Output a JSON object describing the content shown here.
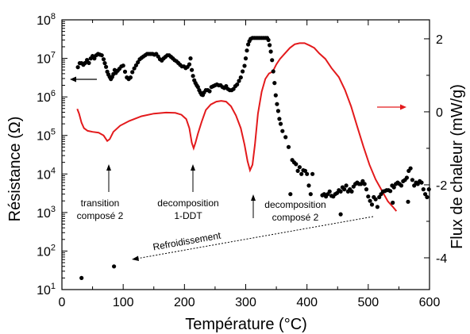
{
  "chart_data": {
    "type": "scatter",
    "xlabel": "Température (°C)",
    "ylabel_left": "Résistance (Ω)",
    "ylabel_right": "Flux de chaleur (mW/g)",
    "x_ticks": [
      "0",
      "100",
      "200",
      "300",
      "400",
      "500",
      "600"
    ],
    "xlim": [
      0,
      600
    ],
    "y_left_scale": "log",
    "y_left_range": [
      10,
      100000000
    ],
    "y_left_ticks": [
      {
        "base": "10",
        "exp": "1"
      },
      {
        "base": "10",
        "exp": "2"
      },
      {
        "base": "10",
        "exp": "3"
      },
      {
        "base": "10",
        "exp": "4"
      },
      {
        "base": "10",
        "exp": "5"
      },
      {
        "base": "10",
        "exp": "6"
      },
      {
        "base": "10",
        "exp": "7"
      },
      {
        "base": "10",
        "exp": "8"
      }
    ],
    "y_right_range": [
      -4.87,
      2.52
    ],
    "y_right_ticks": [
      "2",
      "0",
      "-2",
      "-4"
    ],
    "colors": {
      "resistance": "#000000",
      "heat_flow": "#e31a1c"
    },
    "annotations": [
      {
        "line1": "transition",
        "line2": "composé 2"
      },
      {
        "line1": "decomposition",
        "line2": "1-DDT"
      },
      {
        "line1": "decomposition",
        "line2": "composé 2"
      },
      {
        "line1": "Refroidissement",
        "line2": ""
      }
    ],
    "resistance_heating": [
      [
        26,
        5900000.0
      ],
      [
        29,
        7500000.0
      ],
      [
        32,
        7500000.0
      ],
      [
        35,
        6800000.0
      ],
      [
        38,
        7600000.0
      ],
      [
        41,
        9100000.0
      ],
      [
        44,
        7600000.0
      ],
      [
        47,
        10000000.0
      ],
      [
        50,
        11500000.0
      ],
      [
        53,
        10000000.0
      ],
      [
        56,
        12000000.0
      ],
      [
        59,
        13000000.0
      ],
      [
        62,
        12500000.0
      ],
      [
        65,
        12000000.0
      ],
      [
        68,
        9500000.0
      ],
      [
        70,
        7500000.0
      ],
      [
        72,
        6000000.0
      ],
      [
        74,
        4500000.0
      ],
      [
        76,
        3800000.0
      ],
      [
        78,
        3300000.0
      ],
      [
        80,
        2900000.0
      ],
      [
        82,
        3300000.0
      ],
      [
        84,
        3900000.0
      ],
      [
        86,
        5000000.0
      ],
      [
        88,
        4200000.0
      ],
      [
        91,
        4800000.0
      ],
      [
        94,
        5400000.0
      ],
      [
        97,
        6200000.0
      ],
      [
        100,
        6500000.0
      ],
      [
        103,
        4500000.0
      ],
      [
        106,
        3200000.0
      ],
      [
        109,
        2900000.0
      ],
      [
        112,
        3200000.0
      ],
      [
        115,
        4400000.0
      ],
      [
        118,
        5500000.0
      ],
      [
        121,
        6600000.0
      ],
      [
        124,
        7900000.0
      ],
      [
        127,
        9500000.0
      ],
      [
        130,
        10300000.0
      ],
      [
        133,
        11200000.0
      ],
      [
        136,
        12100000.0
      ],
      [
        139,
        13000000.0
      ],
      [
        142,
        13000000.0
      ],
      [
        145,
        13000000.0
      ],
      [
        148,
        13000000.0
      ],
      [
        151,
        12500000.0
      ],
      [
        154,
        13000000.0
      ],
      [
        157,
        11200000.0
      ],
      [
        160,
        9500000.0
      ],
      [
        163,
        8800000.0
      ],
      [
        166,
        10000000.0
      ],
      [
        169,
        11000000.0
      ],
      [
        172,
        12000000.0
      ],
      [
        175,
        12000000.0
      ],
      [
        178,
        11000000.0
      ],
      [
        181,
        10000000.0
      ],
      [
        184,
        9000000.0
      ],
      [
        187,
        8400000.0
      ],
      [
        190,
        7600000.0
      ],
      [
        193,
        6800000.0
      ],
      [
        196,
        6200000.0
      ],
      [
        199,
        6200000.0
      ],
      [
        202,
        5600000.0
      ],
      [
        205,
        6000000.0
      ],
      [
        208,
        7000000.0
      ],
      [
        210,
        10000000.0
      ],
      [
        212,
        5000000.0
      ],
      [
        214,
        3500000.0
      ],
      [
        216,
        2700000.0
      ],
      [
        218,
        2300000.0
      ],
      [
        220,
        2000000.0
      ],
      [
        222,
        1800000.0
      ],
      [
        224,
        1500000.0
      ],
      [
        226,
        1300000.0
      ],
      [
        228,
        1150000.0
      ],
      [
        230,
        1120000.0
      ],
      [
        232,
        1300000.0
      ],
      [
        235,
        1500000.0
      ],
      [
        238,
        1500000.0
      ],
      [
        241,
        1400000.0
      ],
      [
        244,
        1800000.0
      ],
      [
        247,
        1900000.0
      ],
      [
        250,
        2000000.0
      ],
      [
        253,
        2100000.0
      ],
      [
        256,
        2000000.0
      ],
      [
        259,
        2000000.0
      ],
      [
        262,
        1800000.0
      ],
      [
        265,
        1700000.0
      ],
      [
        268,
        1900000.0
      ],
      [
        271,
        1600000.0
      ],
      [
        274,
        1500000.0
      ],
      [
        277,
        1500000.0
      ],
      [
        280,
        1600000.0
      ],
      [
        283,
        1900000.0
      ],
      [
        286,
        2100000.0
      ],
      [
        289,
        2600000.0
      ],
      [
        292,
        3200000.0
      ],
      [
        295,
        4600000.0
      ],
      [
        298,
        6400000.0
      ],
      [
        300,
        10000000.0
      ],
      [
        302,
        16000000.0
      ],
      [
        304,
        23000000.0
      ],
      [
        306,
        28000000.0
      ],
      [
        308,
        32000000.0
      ],
      [
        311,
        34000000.0
      ],
      [
        314,
        34000000.0
      ],
      [
        317,
        34000000.0
      ],
      [
        320,
        34000000.0
      ],
      [
        323,
        34000000.0
      ],
      [
        326,
        34000000.0
      ],
      [
        329,
        34000000.0
      ],
      [
        332,
        34000000.0
      ],
      [
        335,
        34000000.0
      ],
      [
        337,
        30000000.0
      ],
      [
        339,
        22000000.0
      ],
      [
        341,
        15000000.0
      ],
      [
        343,
        9000000.0
      ],
      [
        345,
        4600000.0
      ],
      [
        347,
        2300000.0
      ],
      [
        349,
        1100000.0
      ],
      [
        351,
        650000.0
      ],
      [
        353,
        430000.0
      ],
      [
        355,
        270000.0
      ],
      [
        357,
        200000.0
      ],
      [
        360,
        130000.0
      ],
      [
        365,
        90000.0
      ],
      [
        370,
        50000.0
      ],
      [
        373,
        3000.0
      ],
      [
        376,
        23000.0
      ],
      [
        379,
        20000.0
      ],
      [
        382,
        18000.0
      ],
      [
        385,
        12000.0
      ],
      [
        388,
        15000.0
      ],
      [
        391,
        10000.0
      ],
      [
        394,
        12500.0
      ],
      [
        397,
        12000.0
      ],
      [
        400,
        10000.0
      ],
      [
        403,
        5000.0
      ],
      [
        406,
        3000.0
      ],
      [
        409,
        10000.0
      ],
      [
        425,
        2800.0
      ],
      [
        428,
        3000.0
      ],
      [
        431,
        2600.0
      ],
      [
        434,
        3000.0
      ],
      [
        437,
        3500.0
      ],
      [
        440,
        2700.0
      ],
      [
        443,
        2600.0
      ],
      [
        446,
        3000.0
      ],
      [
        449,
        3200.0
      ],
      [
        452,
        3800.0
      ],
      [
        455,
        3500.0
      ],
      [
        458,
        4500.0
      ],
      [
        461,
        4000.0
      ],
      [
        464,
        5000.0
      ],
      [
        467,
        3500.0
      ],
      [
        470,
        4000.0
      ],
      [
        473,
        3500.0
      ],
      [
        476,
        4700.0
      ],
      [
        479,
        5500.0
      ],
      [
        482,
        6000.0
      ],
      [
        485,
        5500.0
      ],
      [
        488,
        5500.0
      ],
      [
        491,
        6500.0
      ],
      [
        494,
        5500.0
      ],
      [
        497,
        4000.0
      ],
      [
        500,
        2600.0
      ],
      [
        503,
        2000.0
      ],
      [
        506,
        1600.0
      ],
      [
        509,
        2500.0
      ],
      [
        512,
        2200.0
      ],
      [
        515,
        1400.0
      ],
      [
        518,
        2500.0
      ],
      [
        521,
        3000.0
      ],
      [
        524,
        3500.0
      ],
      [
        527,
        3600.0
      ],
      [
        530,
        3800.0
      ],
      [
        533,
        3800.0
      ],
      [
        536,
        3600.0
      ],
      [
        539,
        5000.0
      ],
      [
        542,
        4500.0
      ],
      [
        545,
        5500.0
      ],
      [
        548,
        6000.0
      ],
      [
        551,
        5500.0
      ],
      [
        554,
        5000.0
      ],
      [
        557,
        6500.0
      ],
      [
        560,
        7000.0
      ],
      [
        563,
        8000.0
      ],
      [
        566,
        12000.0
      ],
      [
        569,
        14000.0
      ],
      [
        572,
        7000.0
      ],
      [
        575,
        5000.0
      ],
      [
        578,
        6000.0
      ],
      [
        581,
        5500.0
      ],
      [
        584,
        6500.0
      ],
      [
        587,
        6000.0
      ],
      [
        590,
        4000.0
      ],
      [
        593,
        3000.0
      ],
      [
        596,
        2500.0
      ],
      [
        599,
        4000.0
      ]
    ],
    "resistance_cooling": [
      [
        32,
        20
      ],
      [
        85,
        40
      ],
      [
        455,
        900
      ],
      [
        540,
        1800.0
      ],
      [
        565,
        1900.0
      ]
    ],
    "heat_flow": [
      [
        25,
        0.08
      ],
      [
        28,
        -0.05
      ],
      [
        32,
        -0.3
      ],
      [
        36,
        -0.45
      ],
      [
        42,
        -0.52
      ],
      [
        50,
        -0.55
      ],
      [
        60,
        -0.57
      ],
      [
        68,
        -0.65
      ],
      [
        74,
        -0.8
      ],
      [
        78,
        -0.75
      ],
      [
        84,
        -0.55
      ],
      [
        95,
        -0.38
      ],
      [
        110,
        -0.25
      ],
      [
        130,
        -0.12
      ],
      [
        150,
        -0.05
      ],
      [
        170,
        -0.02
      ],
      [
        185,
        -0.03
      ],
      [
        195,
        -0.08
      ],
      [
        203,
        -0.2
      ],
      [
        208,
        -0.45
      ],
      [
        212,
        -0.85
      ],
      [
        215,
        -1.0
      ],
      [
        218,
        -0.85
      ],
      [
        222,
        -0.6
      ],
      [
        228,
        -0.28
      ],
      [
        235,
        0.05
      ],
      [
        243,
        0.2
      ],
      [
        252,
        0.28
      ],
      [
        260,
        0.3
      ],
      [
        268,
        0.28
      ],
      [
        276,
        0.15
      ],
      [
        284,
        -0.1
      ],
      [
        292,
        -0.45
      ],
      [
        298,
        -0.9
      ],
      [
        303,
        -1.35
      ],
      [
        307,
        -1.6
      ],
      [
        311,
        -1.45
      ],
      [
        315,
        -0.9
      ],
      [
        320,
        -0.05
      ],
      [
        326,
        0.55
      ],
      [
        332,
        0.9
      ],
      [
        338,
        1.05
      ],
      [
        344,
        1.1
      ],
      [
        350,
        1.3
      ],
      [
        356,
        1.45
      ],
      [
        364,
        1.6
      ],
      [
        372,
        1.75
      ],
      [
        380,
        1.85
      ],
      [
        388,
        1.88
      ],
      [
        396,
        1.88
      ],
      [
        404,
        1.82
      ],
      [
        412,
        1.75
      ],
      [
        420,
        1.6
      ],
      [
        430,
        1.45
      ],
      [
        440,
        1.2
      ],
      [
        452,
        0.95
      ],
      [
        462,
        0.6
      ],
      [
        472,
        0.15
      ],
      [
        482,
        -0.4
      ],
      [
        492,
        -0.95
      ],
      [
        502,
        -1.45
      ],
      [
        512,
        -1.85
      ],
      [
        522,
        -2.15
      ],
      [
        532,
        -2.45
      ],
      [
        541,
        -2.62
      ],
      [
        546,
        -2.72
      ]
    ]
  }
}
